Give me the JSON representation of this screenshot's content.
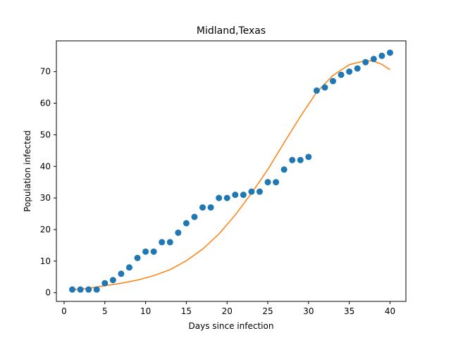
{
  "chart_data": {
    "type": "scatter",
    "title": "Midland,Texas",
    "xlabel": "Days since infection",
    "ylabel": "Population infected",
    "xlim": [
      -0.95,
      41.95
    ],
    "ylim": [
      -2.75,
      79.75
    ],
    "xticks": [
      0,
      5,
      10,
      15,
      20,
      25,
      30,
      35,
      40
    ],
    "yticks": [
      0,
      10,
      20,
      30,
      40,
      50,
      60,
      70
    ],
    "grid": false,
    "legend": "none",
    "series": [
      {
        "kind": "scatter",
        "color": "#1f77b4",
        "x": [
          1,
          2,
          3,
          4,
          5,
          6,
          7,
          8,
          9,
          10,
          11,
          12,
          13,
          14,
          15,
          16,
          17,
          18,
          19,
          20,
          21,
          22,
          23,
          24,
          25,
          26,
          27,
          28,
          29,
          30,
          31,
          32,
          33,
          34,
          35,
          36,
          37,
          38,
          39,
          40
        ],
        "y": [
          1,
          1,
          1,
          1,
          3,
          4,
          6,
          8,
          11,
          13,
          13,
          16,
          16,
          19,
          22,
          24,
          27,
          27,
          30,
          30,
          31,
          31,
          32,
          32,
          35,
          35,
          39,
          42,
          42,
          43,
          64,
          65,
          67,
          69,
          70,
          71,
          73,
          74,
          75,
          76
        ]
      },
      {
        "kind": "line",
        "color": "#ff7f0e",
        "x": [
          1,
          3,
          5,
          7,
          9,
          11,
          13,
          15,
          17,
          19,
          21,
          23,
          25,
          27,
          29,
          31,
          33,
          35,
          37,
          38,
          39,
          40
        ],
        "y": [
          1.0,
          1.4,
          2.2,
          3.0,
          4.0,
          5.4,
          7.3,
          10.1,
          13.8,
          18.6,
          24.6,
          31.5,
          39.0,
          47.5,
          55.8,
          63.5,
          68.8,
          72.2,
          73.5,
          73.3,
          72.3,
          70.6
        ]
      }
    ]
  }
}
